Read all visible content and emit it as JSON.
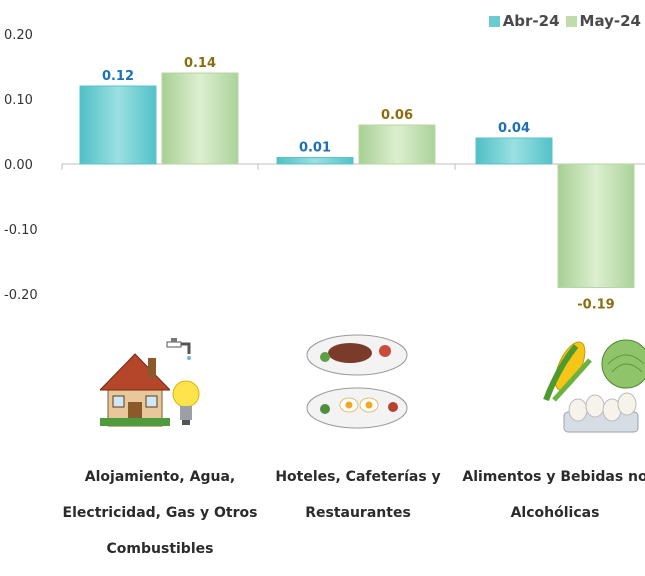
{
  "chart_data": {
    "type": "bar",
    "categories": [
      "Alojamiento, Agua, Electricidad, Gas y Otros Combustibles",
      "Hoteles, Cafeterías y Restaurantes",
      "Alimentos y Bebidas no Alcohólicas"
    ],
    "category_lines": [
      [
        "Alojamiento, Agua,",
        "Electricidad, Gas y Otros",
        "Combustibles"
      ],
      [
        "Hoteles, Cafeterías y",
        "Restaurantes"
      ],
      [
        "Alimentos y Bebidas no",
        "Alcohólicas"
      ]
    ],
    "series": [
      {
        "name": "Abr-24",
        "values": [
          0.12,
          0.01,
          0.04
        ],
        "color": "#7fd3d6",
        "label_color": "#1f6fb5"
      },
      {
        "name": "May-24",
        "values": [
          0.14,
          0.06,
          -0.19
        ],
        "color": "#c5e0b4",
        "label_color": "#8a6d12"
      }
    ],
    "yticks": [
      "0.20",
      "0.10",
      "0.00",
      "-0.10",
      "-0.20"
    ],
    "ytick_values": [
      0.2,
      0.1,
      0.0,
      -0.1,
      -0.2
    ],
    "ylim": [
      -0.2,
      0.2
    ],
    "legend_position": "top-right",
    "grid": false
  },
  "illustrations": [
    "house-icon",
    "faucet-icon",
    "lightbulb-icon",
    "plates-of-food-icon",
    "corn-icon",
    "cabbage-icon",
    "eggs-icon"
  ]
}
